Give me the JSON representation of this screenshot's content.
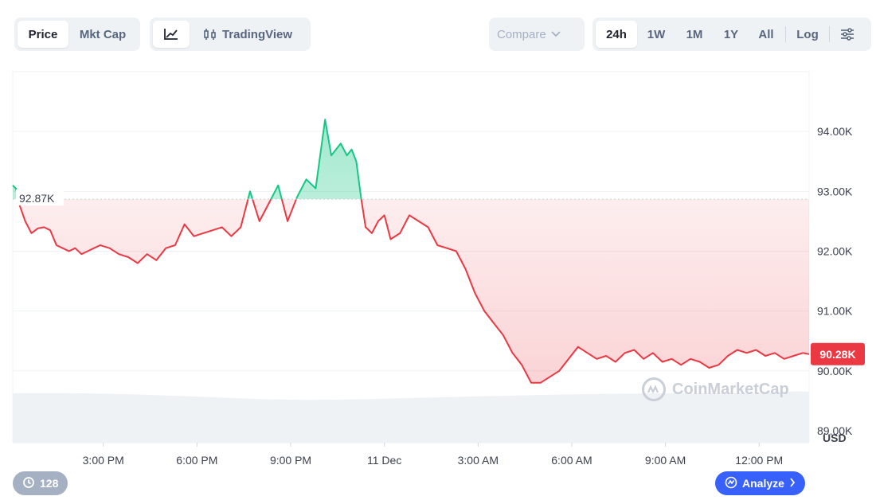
{
  "toolbar": {
    "tabs": [
      {
        "label": "Price",
        "active": true
      },
      {
        "label": "Mkt Cap",
        "active": false
      }
    ],
    "chart_modes": {
      "line_icon": "line-chart-icon",
      "candle_icon": "candlestick-icon",
      "tradingview_label": "TradingView"
    },
    "compare_label": "Compare",
    "ranges": [
      {
        "label": "24h",
        "active": true
      },
      {
        "label": "1W",
        "active": false
      },
      {
        "label": "1M",
        "active": false
      },
      {
        "label": "1Y",
        "active": false
      },
      {
        "label": "All",
        "active": false
      }
    ],
    "log_label": "Log",
    "settings_icon": "sliders-icon"
  },
  "chart_data": {
    "type": "line",
    "title": "",
    "xlabel": "",
    "ylabel": "",
    "unit": "USD",
    "ylim": [
      88800,
      95000
    ],
    "y_ticks": [
      {
        "value": 89000,
        "label": "89.00K"
      },
      {
        "value": 90000,
        "label": "90.00K"
      },
      {
        "value": 91000,
        "label": "91.00K"
      },
      {
        "value": 92000,
        "label": "92.00K"
      },
      {
        "value": 93000,
        "label": "93.00K"
      },
      {
        "value": 94000,
        "label": "94.00K"
      }
    ],
    "x_ticks": [
      "3:00 PM",
      "6:00 PM",
      "9:00 PM",
      "11 Dec",
      "3:00 AM",
      "6:00 AM",
      "9:00 AM",
      "12:00 PM"
    ],
    "x_tick_hours": [
      3,
      6,
      9,
      12,
      15,
      18,
      21,
      24
    ],
    "x_range_hours": [
      0.1,
      25.6
    ],
    "reference": {
      "value": 92870,
      "label": "92.87K"
    },
    "current": {
      "value": 90280,
      "label": "90.28K"
    },
    "colors": {
      "above": "#16c784",
      "below": "#ea3943",
      "grid": "#eff2f5",
      "volume": "#eff2f5"
    },
    "grid": true,
    "series": [
      {
        "x": [
          0.1,
          0.2,
          0.3,
          0.5,
          0.7,
          0.9,
          1.1,
          1.3,
          1.5,
          1.7,
          1.9,
          2.1,
          2.3,
          2.5,
          2.7,
          2.9,
          3.2,
          3.5,
          3.8,
          4.1,
          4.4,
          4.7,
          5.0,
          5.3,
          5.6,
          5.9,
          6.2,
          6.5,
          6.8,
          7.1,
          7.4,
          7.7,
          8.0,
          8.3,
          8.6,
          8.9,
          9.2,
          9.5,
          9.8,
          10.1,
          10.3,
          10.6,
          10.8,
          10.95,
          11.1,
          11.25,
          11.4,
          11.6,
          11.8,
          12.0,
          12.2,
          12.5,
          12.8,
          13.1,
          13.4,
          13.7,
          14.0,
          14.3,
          14.6,
          14.9,
          15.2,
          15.5,
          15.8,
          16.1,
          16.4,
          16.7,
          17.0,
          17.3,
          17.6,
          17.9,
          18.2,
          18.5,
          18.8,
          19.1,
          19.4,
          19.7,
          20.0,
          20.3,
          20.6,
          20.9,
          21.2,
          21.5,
          21.8,
          22.1,
          22.4,
          22.7,
          23.0,
          23.3,
          23.6,
          23.9,
          24.2,
          24.5,
          24.8,
          25.1,
          25.4,
          25.6
        ],
        "y": [
          93100,
          93050,
          92800,
          92500,
          92300,
          92380,
          92400,
          92350,
          92100,
          92050,
          92000,
          92050,
          91950,
          92000,
          92050,
          92100,
          92050,
          91950,
          91900,
          91800,
          91950,
          91850,
          92050,
          92100,
          92450,
          92250,
          92300,
          92350,
          92400,
          92250,
          92400,
          93000,
          92500,
          92800,
          93100,
          92500,
          92900,
          93200,
          93050,
          94200,
          93600,
          93800,
          93600,
          93700,
          93500,
          92900,
          92400,
          92300,
          92500,
          92600,
          92200,
          92300,
          92600,
          92500,
          92400,
          92100,
          92050,
          92000,
          91700,
          91300,
          91000,
          90800,
          90600,
          90300,
          90100,
          89800,
          89800,
          89900,
          90000,
          90200,
          90400,
          90300,
          90200,
          90250,
          90150,
          90300,
          90350,
          90200,
          90300,
          90150,
          90200,
          90100,
          90200,
          90150,
          90050,
          90100,
          90250,
          90350,
          90300,
          90350,
          90250,
          90300,
          90200,
          90250,
          90300,
          90280
        ]
      }
    ]
  },
  "watermark": {
    "icon": "coinmarketcap-logo-icon",
    "label": "CoinMarketCap"
  },
  "history_badge": {
    "icon": "history-icon",
    "count": "128"
  },
  "analyze": {
    "icon": "ai-sparkle-icon",
    "label": "Analyze",
    "chevron": "chevron-right-icon"
  }
}
